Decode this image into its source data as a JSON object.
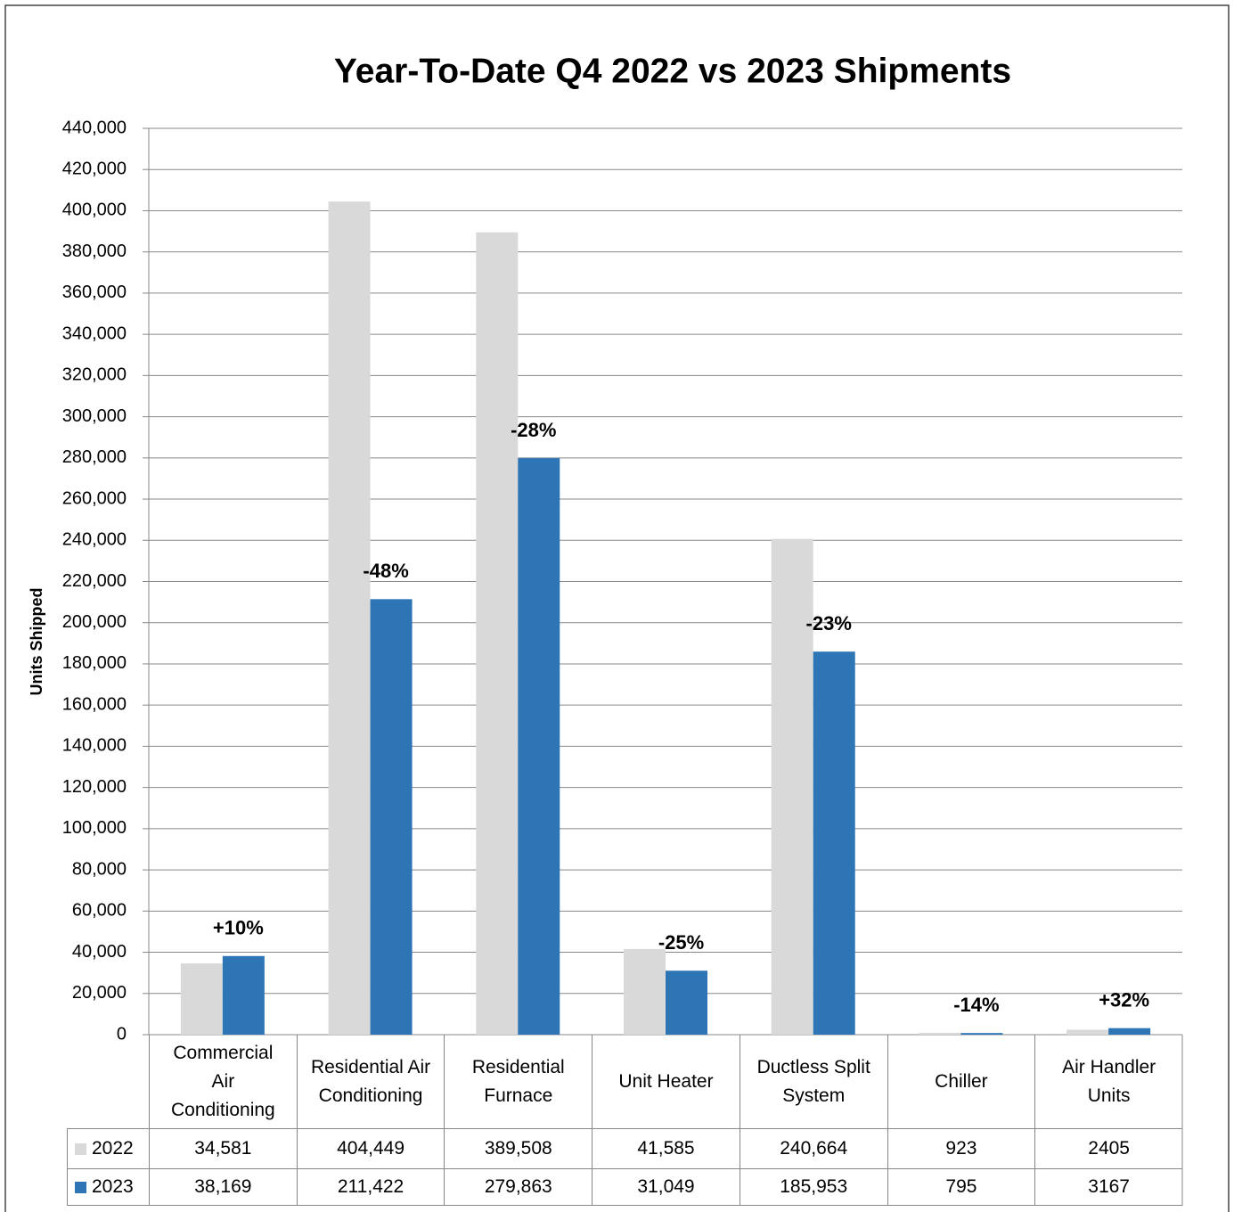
{
  "chart_data": {
    "type": "bar",
    "title": "Year-To-Date Q4 2022 vs 2023 Shipments",
    "y_label": "Units Shipped",
    "categories": [
      "Commercial Air Conditioning",
      "Residential Air Conditioning",
      "Residential Furnace",
      "Unit Heater",
      "Ductless Split System",
      "Chiller",
      "Air Handler Units"
    ],
    "series": [
      {
        "name": "2022",
        "color": "#d9d9d9",
        "values": [
          34581,
          404449,
          389508,
          41585,
          240664,
          923,
          2405
        ],
        "value_labels": [
          "34,581",
          "404,449",
          "389,508",
          "41,585",
          "240,664",
          "923",
          "2405"
        ]
      },
      {
        "name": "2023",
        "color": "#2e75b6",
        "values": [
          38169,
          211422,
          279863,
          31049,
          185953,
          795,
          3167
        ],
        "value_labels": [
          "38,169",
          "211,422",
          "279,863",
          "31,049",
          "185,953",
          "795",
          "3167"
        ]
      }
    ],
    "change_labels": [
      "+10%",
      "-48%",
      "-28%",
      "-25%",
      "-23%",
      "-14%",
      "+32%"
    ],
    "ylim": [
      0,
      440000
    ],
    "yticks": [
      0,
      {
        "value": 20000,
        "label": "20,000"
      },
      {
        "value": 40000,
        "label": "40,000"
      },
      {
        "value": 60000,
        "label": "60,000"
      },
      {
        "value": 80000,
        "label": "80,000"
      },
      {
        "value": 100000,
        "label": "100,000"
      },
      {
        "value": 120000,
        "label": "120,000"
      },
      {
        "value": 140000,
        "label": "140,000"
      },
      {
        "value": 160000,
        "label": "160,000"
      },
      {
        "value": 180000,
        "label": "180,000"
      },
      {
        "value": 200000,
        "label": "200,000"
      },
      {
        "value": 220000,
        "label": "220,000"
      },
      {
        "value": 240000,
        "label": "240,000"
      },
      {
        "value": 260000,
        "label": "260,000"
      },
      {
        "value": 280000,
        "label": "280,000"
      },
      {
        "value": 300000,
        "label": "300,000"
      },
      {
        "value": 320000,
        "label": "320,000"
      },
      {
        "value": 340000,
        "label": "340,000"
      },
      {
        "value": 360000,
        "label": "360,000"
      },
      {
        "value": 380000,
        "label": "380,000"
      },
      {
        "value": 400000,
        "label": "400,000"
      },
      {
        "value": 420000,
        "label": "420,000"
      },
      {
        "value": 440000,
        "label": "440,000"
      }
    ],
    "grid": true,
    "data_table": true
  }
}
